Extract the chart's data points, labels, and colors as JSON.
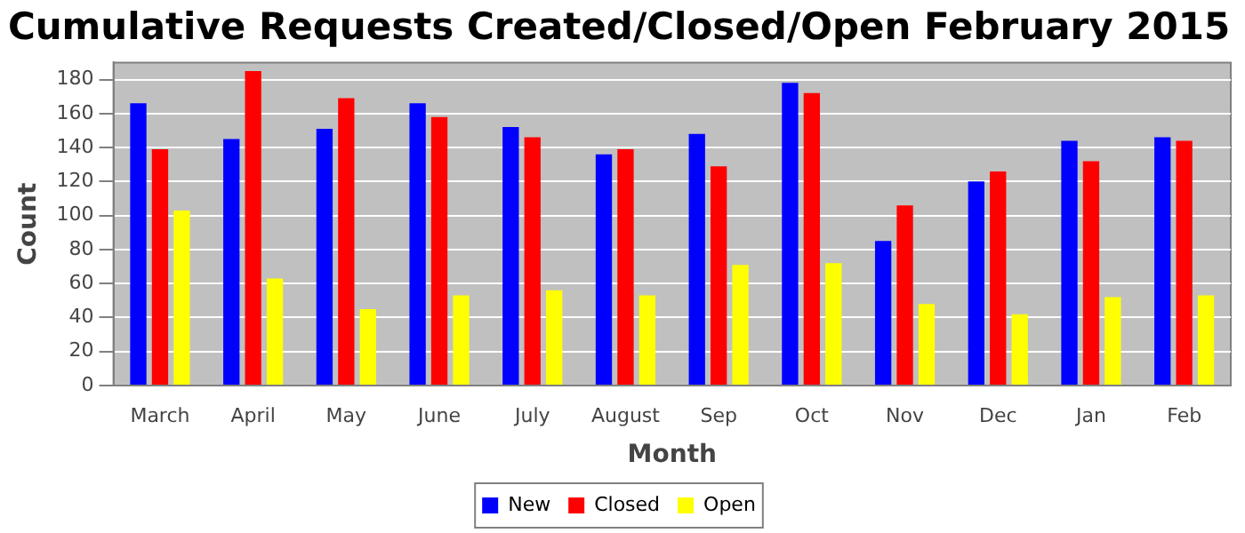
{
  "chart_data": {
    "type": "bar",
    "title": "Cumulative Requests Created/Closed/Open February 2015",
    "xlabel": "Month",
    "ylabel": "Count",
    "categories": [
      "March",
      "April",
      "May",
      "June",
      "July",
      "August",
      "Sep",
      "Oct",
      "Nov",
      "Dec",
      "Jan",
      "Feb"
    ],
    "series": [
      {
        "name": "New",
        "color": "#0000ff",
        "values": [
          166,
          145,
          151,
          166,
          152,
          136,
          148,
          178,
          85,
          120,
          144,
          146
        ]
      },
      {
        "name": "Closed",
        "color": "#ff0000",
        "values": [
          139,
          185,
          169,
          158,
          146,
          139,
          129,
          172,
          106,
          126,
          132,
          144
        ]
      },
      {
        "name": "Open",
        "color": "#ffff00",
        "values": [
          103,
          63,
          45,
          53,
          56,
          53,
          71,
          72,
          48,
          42,
          52,
          53
        ]
      }
    ],
    "ylim": [
      0,
      190
    ],
    "yticks": [
      0,
      20,
      40,
      60,
      80,
      100,
      120,
      140,
      160,
      180
    ],
    "grid": "y",
    "legend": "bottom"
  }
}
